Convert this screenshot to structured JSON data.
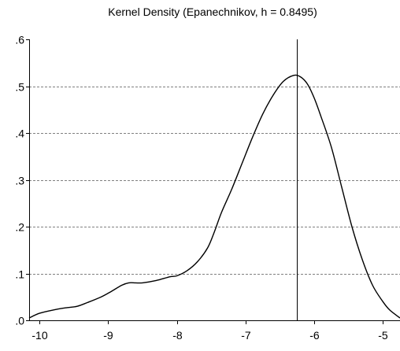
{
  "chart_data": {
    "type": "line",
    "title": "Kernel Density (Epanechnikov, h = 0.8495)",
    "xlabel": "",
    "ylabel": "",
    "xlim": [
      -10.15,
      -4.75
    ],
    "ylim": [
      0,
      0.6
    ],
    "x_ticks": [
      -10,
      -9,
      -8,
      -7,
      -6,
      -5
    ],
    "x_tick_labels": [
      "-10",
      "-9",
      "-8",
      "-7",
      "-6",
      "-5"
    ],
    "y_ticks": [
      0,
      0.1,
      0.2,
      0.3,
      0.4,
      0.5,
      0.6
    ],
    "y_tick_labels": [
      ".0",
      ".1",
      ".2",
      ".3",
      ".4",
      ".5",
      ".6"
    ],
    "grid": "horizontal dashed",
    "reference_line_x": -6.25,
    "series": [
      {
        "x": [
          -10.15,
          -10.0,
          -9.8,
          -9.6,
          -9.45,
          -9.3,
          -9.1,
          -8.95,
          -8.8,
          -8.7,
          -8.6,
          -8.5,
          -8.3,
          -8.1,
          -8.0,
          -7.85,
          -7.7,
          -7.55,
          -7.45,
          -7.35,
          -7.2,
          -7.05,
          -6.9,
          -6.75,
          -6.6,
          -6.45,
          -6.3,
          -6.2,
          -6.1,
          -6.0,
          -5.9,
          -5.75,
          -5.6,
          -5.45,
          -5.3,
          -5.15,
          -5.0,
          -4.9,
          -4.75
        ],
        "values": [
          0.005,
          0.015,
          0.022,
          0.027,
          0.03,
          0.038,
          0.05,
          0.062,
          0.075,
          0.08,
          0.08,
          0.08,
          0.085,
          0.093,
          0.095,
          0.106,
          0.125,
          0.155,
          0.19,
          0.23,
          0.28,
          0.335,
          0.39,
          0.44,
          0.48,
          0.51,
          0.523,
          0.52,
          0.505,
          0.475,
          0.435,
          0.37,
          0.285,
          0.2,
          0.13,
          0.075,
          0.04,
          0.022,
          0.005
        ]
      }
    ]
  }
}
